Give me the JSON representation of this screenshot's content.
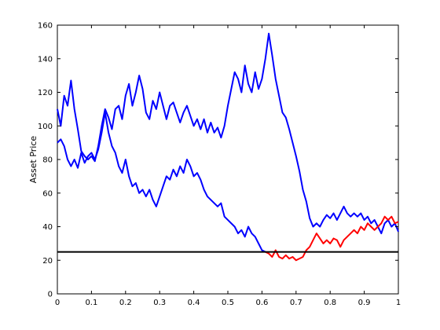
{
  "chart_data": {
    "type": "line",
    "title": "",
    "xlabel": "",
    "ylabel": "Asset Price",
    "xlim": [
      0,
      1
    ],
    "ylim": [
      0,
      160
    ],
    "xticks": [
      0,
      0.1,
      0.2,
      0.3,
      0.4,
      0.5,
      0.6,
      0.7,
      0.8,
      0.9,
      1
    ],
    "xtick_labels": [
      "0",
      "0.1",
      "0.2",
      "0.3",
      "0.4",
      "0.5",
      "0.6",
      "0.7",
      "0.8",
      "0.9",
      "1"
    ],
    "yticks": [
      0,
      20,
      40,
      60,
      80,
      100,
      120,
      140,
      160
    ],
    "ytick_labels": [
      "0",
      "20",
      "40",
      "60",
      "80",
      "100",
      "120",
      "140",
      "160"
    ],
    "grid": false,
    "legend": "none",
    "colors": {
      "path": "#0000ff",
      "barrier_hit": "#ff0000",
      "barrier": "#000000"
    },
    "series": [
      {
        "color": "path",
        "points": [
          [
            0,
            110
          ],
          [
            0.01,
            100
          ],
          [
            0.02,
            118
          ],
          [
            0.03,
            112
          ],
          [
            0.04,
            127
          ],
          [
            0.05,
            110
          ],
          [
            0.06,
            98
          ],
          [
            0.07,
            85
          ],
          [
            0.08,
            82
          ],
          [
            0.09,
            80
          ],
          [
            0.1,
            82
          ],
          [
            0.11,
            79
          ],
          [
            0.12,
            88
          ],
          [
            0.13,
            100
          ],
          [
            0.14,
            110
          ],
          [
            0.15,
            105
          ],
          [
            0.16,
            98
          ],
          [
            0.17,
            110
          ],
          [
            0.18,
            112
          ],
          [
            0.19,
            104
          ],
          [
            0.2,
            118
          ],
          [
            0.21,
            125
          ],
          [
            0.22,
            112
          ],
          [
            0.23,
            120
          ],
          [
            0.24,
            130
          ],
          [
            0.25,
            122
          ],
          [
            0.26,
            108
          ],
          [
            0.27,
            104
          ],
          [
            0.28,
            115
          ],
          [
            0.29,
            110
          ],
          [
            0.3,
            120
          ],
          [
            0.31,
            112
          ],
          [
            0.32,
            104
          ],
          [
            0.33,
            112
          ],
          [
            0.34,
            114
          ],
          [
            0.35,
            108
          ],
          [
            0.36,
            102
          ],
          [
            0.37,
            108
          ],
          [
            0.38,
            112
          ],
          [
            0.39,
            106
          ],
          [
            0.4,
            100
          ],
          [
            0.41,
            104
          ],
          [
            0.42,
            98
          ],
          [
            0.43,
            104
          ],
          [
            0.44,
            96
          ],
          [
            0.45,
            102
          ],
          [
            0.46,
            96
          ],
          [
            0.47,
            99
          ],
          [
            0.48,
            93
          ],
          [
            0.49,
            100
          ],
          [
            0.5,
            112
          ],
          [
            0.51,
            122
          ],
          [
            0.52,
            132
          ],
          [
            0.53,
            128
          ],
          [
            0.54,
            120
          ],
          [
            0.55,
            136
          ],
          [
            0.56,
            125
          ],
          [
            0.57,
            120
          ],
          [
            0.58,
            132
          ],
          [
            0.59,
            122
          ],
          [
            0.6,
            128
          ],
          [
            0.61,
            140
          ],
          [
            0.62,
            155
          ],
          [
            0.63,
            142
          ],
          [
            0.64,
            128
          ],
          [
            0.65,
            118
          ],
          [
            0.66,
            108
          ],
          [
            0.67,
            105
          ],
          [
            0.68,
            98
          ],
          [
            0.69,
            90
          ],
          [
            0.7,
            82
          ],
          [
            0.71,
            73
          ],
          [
            0.72,
            62
          ],
          [
            0.73,
            55
          ],
          [
            0.74,
            45
          ],
          [
            0.75,
            40
          ],
          [
            0.76,
            42
          ],
          [
            0.77,
            40
          ],
          [
            0.78,
            44
          ],
          [
            0.79,
            47
          ],
          [
            0.8,
            45
          ],
          [
            0.81,
            48
          ],
          [
            0.82,
            44
          ],
          [
            0.83,
            48
          ],
          [
            0.84,
            52
          ],
          [
            0.85,
            48
          ],
          [
            0.86,
            46
          ],
          [
            0.87,
            48
          ],
          [
            0.88,
            46
          ],
          [
            0.89,
            48
          ],
          [
            0.9,
            44
          ],
          [
            0.91,
            46
          ],
          [
            0.92,
            42
          ],
          [
            0.93,
            44
          ],
          [
            0.94,
            40
          ],
          [
            0.95,
            36
          ],
          [
            0.96,
            42
          ],
          [
            0.97,
            44
          ],
          [
            0.98,
            40
          ],
          [
            0.99,
            42
          ],
          [
            1,
            37
          ]
        ]
      },
      {
        "color": "path",
        "points": [
          [
            0,
            90
          ],
          [
            0.01,
            92
          ],
          [
            0.02,
            88
          ],
          [
            0.03,
            80
          ],
          [
            0.04,
            76
          ],
          [
            0.05,
            80
          ],
          [
            0.06,
            75
          ],
          [
            0.07,
            84
          ],
          [
            0.08,
            78
          ],
          [
            0.09,
            82
          ],
          [
            0.1,
            84
          ],
          [
            0.11,
            80
          ],
          [
            0.12,
            86
          ],
          [
            0.13,
            96
          ],
          [
            0.14,
            108
          ],
          [
            0.15,
            96
          ],
          [
            0.16,
            88
          ],
          [
            0.17,
            84
          ],
          [
            0.18,
            76
          ],
          [
            0.19,
            72
          ],
          [
            0.2,
            80
          ],
          [
            0.21,
            70
          ],
          [
            0.22,
            64
          ],
          [
            0.23,
            66
          ],
          [
            0.24,
            60
          ],
          [
            0.25,
            62
          ],
          [
            0.26,
            58
          ],
          [
            0.27,
            62
          ],
          [
            0.28,
            56
          ],
          [
            0.29,
            52
          ],
          [
            0.3,
            58
          ],
          [
            0.31,
            64
          ],
          [
            0.32,
            70
          ],
          [
            0.33,
            68
          ],
          [
            0.34,
            74
          ],
          [
            0.35,
            70
          ],
          [
            0.36,
            76
          ],
          [
            0.37,
            72
          ],
          [
            0.38,
            80
          ],
          [
            0.39,
            76
          ],
          [
            0.4,
            70
          ],
          [
            0.41,
            72
          ],
          [
            0.42,
            68
          ],
          [
            0.43,
            62
          ],
          [
            0.44,
            58
          ],
          [
            0.45,
            56
          ],
          [
            0.46,
            54
          ],
          [
            0.47,
            52
          ],
          [
            0.48,
            54
          ],
          [
            0.49,
            46
          ],
          [
            0.5,
            44
          ],
          [
            0.51,
            42
          ],
          [
            0.52,
            40
          ],
          [
            0.53,
            36
          ],
          [
            0.54,
            38
          ],
          [
            0.55,
            34
          ],
          [
            0.56,
            40
          ],
          [
            0.57,
            36
          ],
          [
            0.58,
            34
          ],
          [
            0.59,
            30
          ],
          [
            0.6,
            26
          ],
          [
            0.61,
            25
          ]
        ]
      },
      {
        "color": "barrier_hit",
        "points": [
          [
            0.61,
            25
          ],
          [
            0.62,
            24
          ],
          [
            0.63,
            22
          ],
          [
            0.64,
            26
          ],
          [
            0.65,
            22
          ],
          [
            0.66,
            21
          ],
          [
            0.67,
            23
          ],
          [
            0.68,
            21
          ],
          [
            0.69,
            22
          ],
          [
            0.7,
            20
          ],
          [
            0.71,
            21
          ],
          [
            0.72,
            22
          ],
          [
            0.73,
            26
          ],
          [
            0.74,
            28
          ],
          [
            0.75,
            32
          ],
          [
            0.76,
            36
          ],
          [
            0.77,
            33
          ],
          [
            0.78,
            30
          ],
          [
            0.79,
            32
          ],
          [
            0.8,
            30
          ],
          [
            0.81,
            33
          ],
          [
            0.82,
            32
          ],
          [
            0.83,
            28
          ],
          [
            0.84,
            32
          ],
          [
            0.85,
            34
          ],
          [
            0.86,
            36
          ],
          [
            0.87,
            38
          ],
          [
            0.88,
            36
          ],
          [
            0.89,
            40
          ],
          [
            0.9,
            38
          ],
          [
            0.91,
            42
          ],
          [
            0.92,
            40
          ],
          [
            0.93,
            38
          ],
          [
            0.94,
            40
          ],
          [
            0.95,
            42
          ],
          [
            0.96,
            46
          ],
          [
            0.97,
            44
          ],
          [
            0.98,
            46
          ],
          [
            0.99,
            42
          ],
          [
            1,
            43
          ]
        ]
      }
    ],
    "barrier": {
      "y": 25,
      "x": [
        0,
        1
      ]
    }
  }
}
